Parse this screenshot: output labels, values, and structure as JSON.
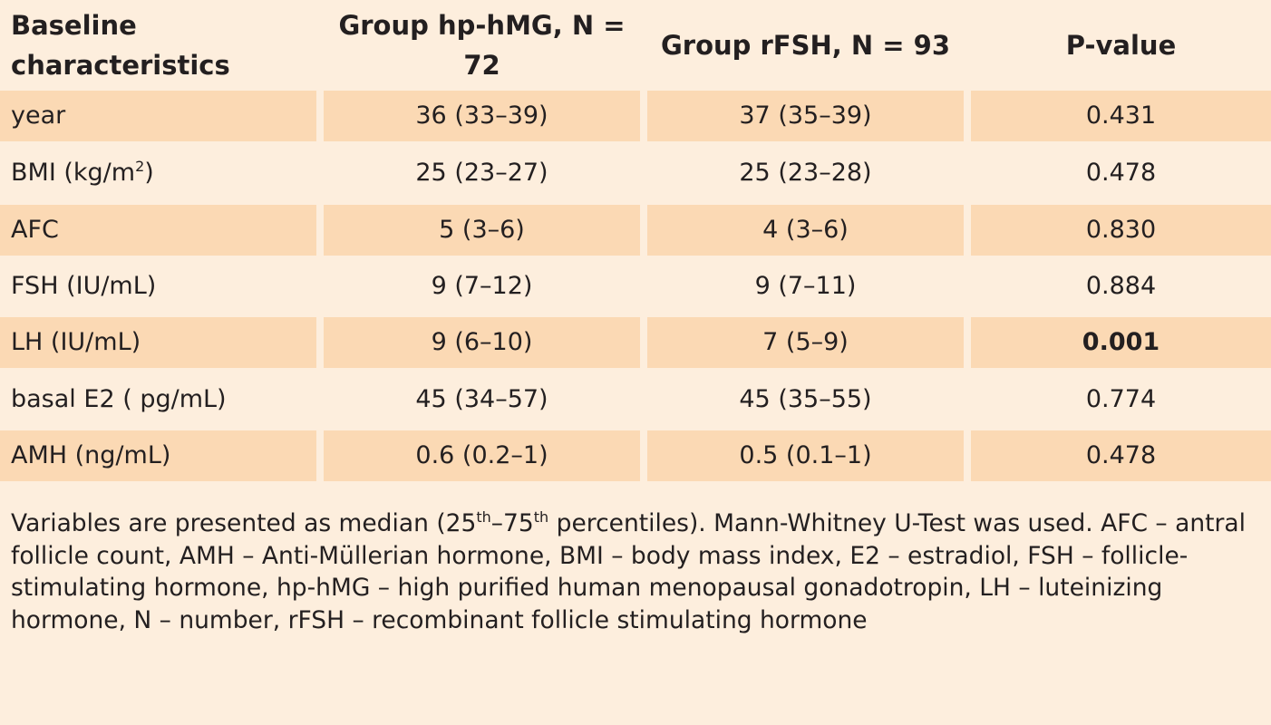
{
  "table": {
    "headers": [
      {
        "line1": "Baseline",
        "line2": "characteristics"
      },
      {
        "line1": "Group hp-hMG,",
        "line2": "N = 72"
      },
      {
        "line1": "Group rFSH,",
        "line2": "N = 93"
      },
      {
        "line1": "P-value",
        "line2": ""
      }
    ],
    "rows": [
      {
        "label": "year",
        "label_sup": "",
        "label_after": "",
        "hmg": "36 (33–39)",
        "rfsh": "37 (35–39)",
        "p": "0.431",
        "p_bold": false
      },
      {
        "label": "BMI (kg/m",
        "label_sup": "2",
        "label_after": ")",
        "hmg": "25 (23–27)",
        "rfsh": "25 (23–28)",
        "p": "0.478",
        "p_bold": false
      },
      {
        "label": "AFC",
        "label_sup": "",
        "label_after": "",
        "hmg": "5 (3–6)",
        "rfsh": "4 (3–6)",
        "p": "0.830",
        "p_bold": false
      },
      {
        "label": "FSH (IU/mL)",
        "label_sup": "",
        "label_after": "",
        "hmg": "9 (7–12)",
        "rfsh": "9 (7–11)",
        "p": "0.884",
        "p_bold": false
      },
      {
        "label": "LH (IU/mL)",
        "label_sup": "",
        "label_after": "",
        "hmg": "9 (6–10)",
        "rfsh": "7 (5–9)",
        "p": "0.001",
        "p_bold": true
      },
      {
        "label": "basal E2 ( pg/mL)",
        "label_sup": "",
        "label_after": "",
        "hmg": "45 (34–57)",
        "rfsh": "45 (35–55)",
        "p": "0.774",
        "p_bold": false
      },
      {
        "label": "AMH (ng/mL)",
        "label_sup": "",
        "label_after": "",
        "hmg": "0.6 (0.2–1)",
        "rfsh": "0.5 (0.1–1)",
        "p": "0.478",
        "p_bold": false
      }
    ]
  },
  "footnote": {
    "part1": "Variables are presented as median (25",
    "sup1": "th",
    "part2": "–75",
    "sup2": "th",
    "part3": " percentiles). Mann-Whitney U-Test was used. AFC – antral follicle count, AMH – Anti-Müllerian hormone, BMI – body mass index, E2 – estradiol, FSH – follicle-stimulating hormone, hp-hMG – high purified human menopausal gonadotropin, LH – luteinizing hormone, N – number, rFSH – recombinant follicle stimulating hormone"
  },
  "colors": {
    "background": "#fdeedd",
    "shaded_row": "#fbd9b4",
    "text": "#231f20"
  }
}
